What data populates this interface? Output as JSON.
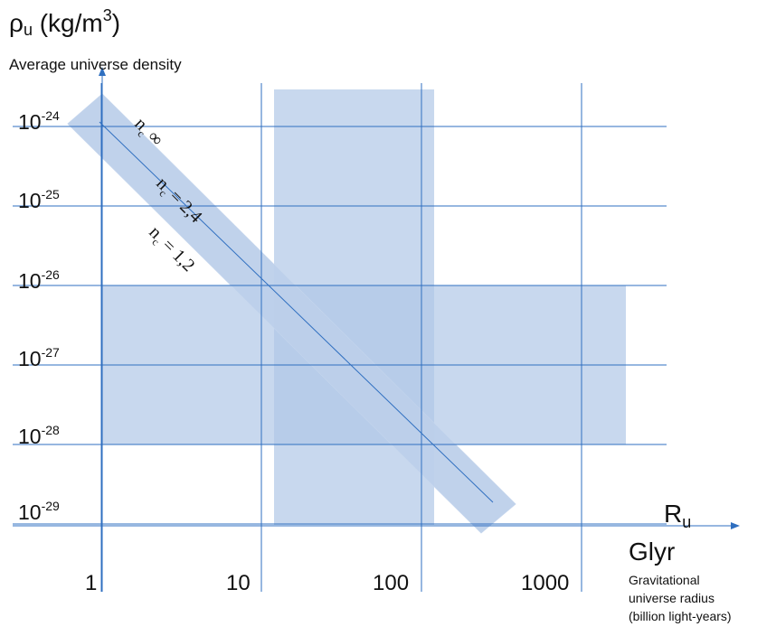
{
  "chart_data": {
    "type": "area",
    "y_axis": {
      "symbol": "ρ",
      "subscript": "u",
      "unit_prefix": "(kg/m",
      "unit_exp": "3",
      "unit_suffix": ")",
      "description": "Average universe density",
      "scale": "log",
      "ticks": [
        {
          "base": "10",
          "exp": "-24",
          "value": 1e-24
        },
        {
          "base": "10",
          "exp": "-25",
          "value": 1e-25
        },
        {
          "base": "10",
          "exp": "-26",
          "value": 1e-26
        },
        {
          "base": "10",
          "exp": "-27",
          "value": 1e-27
        },
        {
          "base": "10",
          "exp": "-28",
          "value": 1e-28
        },
        {
          "base": "10",
          "exp": "-29",
          "value": 1e-29
        }
      ]
    },
    "x_axis": {
      "symbol": "R",
      "subscript": "u",
      "unit": "Glyr",
      "description_lines": [
        "Gravitational",
        "universe radius",
        "(billion light-years)"
      ],
      "scale": "log",
      "ticks": [
        {
          "label": "1",
          "value": 1
        },
        {
          "label": "10",
          "value": 10
        },
        {
          "label": "100",
          "value": 100
        },
        {
          "label": "1000",
          "value": 1000
        }
      ]
    },
    "regions": [
      {
        "kind": "vertical-band",
        "x_from": 12,
        "x_to": 120
      },
      {
        "kind": "horizontal-band",
        "y_from": 1e-26,
        "y_to": 1e-28
      }
    ],
    "relation_band": {
      "line_labels": [
        {
          "n": "n",
          "sub": "c",
          "text": " ∞"
        },
        {
          "n": "n",
          "sub": "c",
          "text": " = 2,4"
        },
        {
          "n": "n",
          "sub": "c",
          "text": " = 1,2"
        }
      ]
    },
    "grid": true,
    "colors": {
      "fill": "#c8d8ee",
      "overlap": "#a9c2e6",
      "line": "#2f6fc0",
      "axis": "#2f6fc0"
    }
  }
}
